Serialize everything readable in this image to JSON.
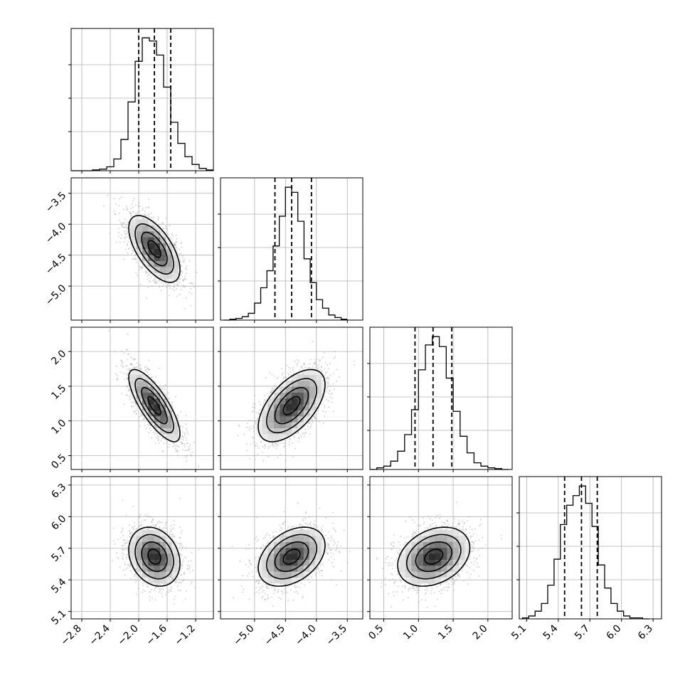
{
  "chart_data": {
    "type": "corner",
    "grid": true,
    "parameters": [
      {
        "id": "p0",
        "range": [
          -2.95,
          -0.95
        ],
        "ticks": [
          -2.8,
          -2.4,
          -2.0,
          -1.6,
          -1.2
        ],
        "tick_labels": [
          "−2.8",
          "−2.4",
          "−2.0",
          "−1.6",
          "−1.2"
        ],
        "mean": -1.78,
        "sd": 0.18,
        "quantiles": [
          -2.0,
          -1.78,
          -1.55
        ],
        "hist_x": [
          -2.95,
          -2.85,
          -2.75,
          -2.65,
          -2.55,
          -2.45,
          -2.35,
          -2.25,
          -2.15,
          -2.05,
          -1.95,
          -1.85,
          -1.75,
          -1.65,
          -1.55,
          -1.45,
          -1.35,
          -1.25,
          -1.15,
          -1.05,
          -0.95
        ],
        "hist_counts": [
          0,
          0,
          0,
          1,
          2,
          5,
          15,
          40,
          88,
          140,
          170,
          166,
          148,
          107,
          62,
          35,
          18,
          8,
          3,
          1
        ]
      },
      {
        "id": "p1",
        "range": [
          -5.55,
          -3.25
        ],
        "ticks": [
          -5.0,
          -4.5,
          -4.0,
          -3.5
        ],
        "tick_labels": [
          "−5.0",
          "−4.5",
          "−4.0",
          "−3.5"
        ],
        "mean": -4.4,
        "sd": 0.27,
        "quantiles": [
          -4.67,
          -4.4,
          -4.08
        ],
        "hist_x": [
          -5.5,
          -5.4,
          -5.3,
          -5.2,
          -5.1,
          -5.0,
          -4.9,
          -4.8,
          -4.7,
          -4.6,
          -4.5,
          -4.4,
          -4.3,
          -4.2,
          -4.1,
          -4.0,
          -3.9,
          -3.8,
          -3.7,
          -3.6,
          -3.5
        ],
        "hist_counts": [
          0,
          1,
          2,
          4,
          8,
          20,
          38,
          58,
          87,
          122,
          156,
          150,
          116,
          72,
          44,
          24,
          14,
          6,
          3,
          1
        ]
      },
      {
        "id": "p2",
        "range": [
          0.3,
          2.35
        ],
        "ticks": [
          0.5,
          1.0,
          1.5,
          2.0
        ],
        "tick_labels": [
          "0.5",
          "1.0",
          "1.5",
          "2.0"
        ],
        "mean": 1.22,
        "sd": 0.26,
        "quantiles": [
          0.95,
          1.21,
          1.48
        ],
        "hist_x": [
          0.3,
          0.4,
          0.5,
          0.6,
          0.7,
          0.8,
          0.9,
          1.0,
          1.1,
          1.2,
          1.3,
          1.4,
          1.5,
          1.6,
          1.7,
          1.8,
          1.9,
          2.0,
          2.1,
          2.2,
          2.3
        ],
        "hist_counts": [
          0,
          2,
          4,
          10,
          22,
          42,
          72,
          120,
          150,
          160,
          148,
          110,
          70,
          40,
          20,
          8,
          4,
          2,
          1,
          0
        ]
      },
      {
        "id": "p3",
        "range": [
          5.03,
          6.38
        ],
        "ticks": [
          5.1,
          5.4,
          5.7,
          6.0,
          6.3
        ],
        "tick_labels": [
          "5.1",
          "5.4",
          "5.7",
          "6.0",
          "6.3"
        ],
        "mean": 5.62,
        "sd": 0.14,
        "quantiles": [
          5.46,
          5.62,
          5.77
        ],
        "hist_x": [
          5.06,
          5.12,
          5.18,
          5.24,
          5.3,
          5.36,
          5.42,
          5.48,
          5.54,
          5.6,
          5.66,
          5.72,
          5.78,
          5.84,
          5.9,
          5.96,
          6.02,
          6.08,
          6.14,
          6.2,
          6.26
        ],
        "hist_counts": [
          1,
          3,
          8,
          16,
          35,
          62,
          98,
          118,
          128,
          138,
          120,
          96,
          56,
          32,
          16,
          8,
          3,
          1,
          1,
          0
        ]
      }
    ],
    "correlations": {
      "1-0": -0.62,
      "2-0": -0.78,
      "2-1": 0.58,
      "3-0": -0.22,
      "3-1": 0.38,
      "3-2": 0.3
    },
    "contour_levels_sigma": [
      0.5,
      1.0,
      1.5,
      2.0
    ]
  }
}
